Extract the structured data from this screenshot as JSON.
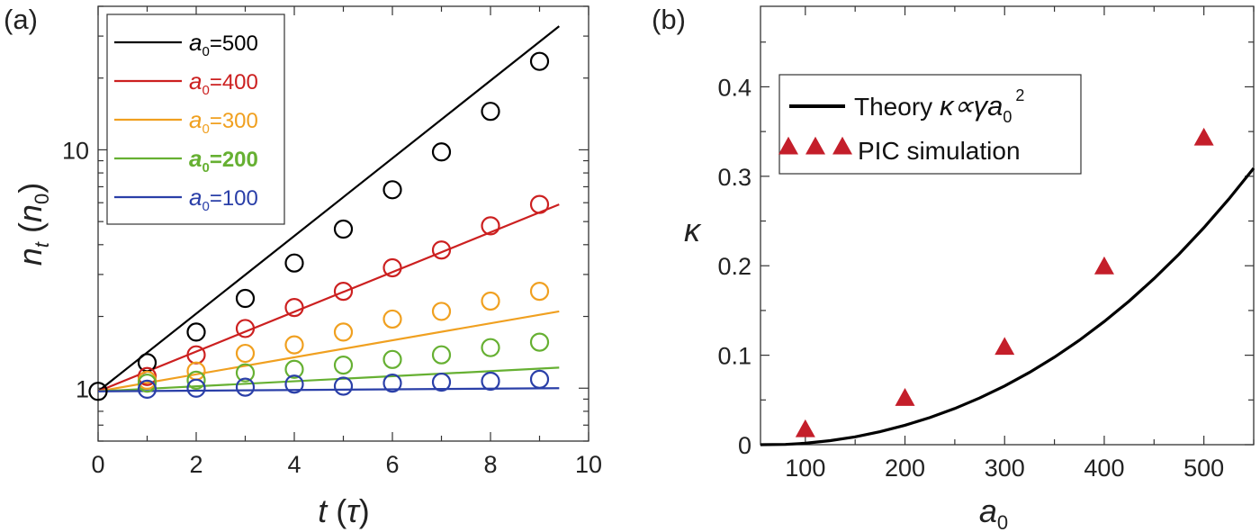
{
  "chart_data": [
    {
      "panel_label": "(a)",
      "type": "line",
      "xlabel": {
        "main": "t",
        "unit": "τ"
      },
      "ylabel": {
        "main": "n",
        "sub": "t",
        "unit": "n",
        "unit_sub": "0"
      },
      "xlim": [
        0,
        10
      ],
      "ylim": [
        0.6,
        40
      ],
      "yscale": "log",
      "xticks": [
        0,
        2,
        4,
        6,
        8,
        10
      ],
      "yticks": [
        1,
        10
      ],
      "legend_position": "top-left",
      "series": [
        {
          "name": "a0=500",
          "name_main": "a",
          "name_sub": "0",
          "name_value": "=500",
          "color": "#000000",
          "bold": false,
          "line": {
            "x": [
              0,
              9.4
            ],
            "y": [
              0.97,
              33
            ]
          },
          "points": {
            "x": [
              0,
              1,
              2,
              3,
              4,
              5,
              6,
              7,
              8,
              9
            ],
            "y": [
              0.97,
              1.28,
              1.72,
              2.38,
              3.35,
              4.65,
              6.8,
              9.8,
              14.5,
              23.5
            ]
          }
        },
        {
          "name": "a0=400",
          "name_main": "a",
          "name_sub": "0",
          "name_value": "=400",
          "color": "#cc2020",
          "bold": false,
          "line": {
            "x": [
              0,
              9.4
            ],
            "y": [
              0.97,
              5.9
            ]
          },
          "points": {
            "x": [
              1,
              2,
              3,
              4,
              5,
              6,
              7,
              8,
              9
            ],
            "y": [
              1.12,
              1.38,
              1.78,
              2.18,
              2.55,
              3.2,
              3.8,
              4.8,
              5.9
            ]
          }
        },
        {
          "name": "a0=300",
          "name_main": "a",
          "name_sub": "0",
          "name_value": "=300",
          "color": "#f0a020",
          "bold": false,
          "line": {
            "x": [
              0,
              9.4
            ],
            "y": [
              0.97,
              2.1
            ]
          },
          "points": {
            "x": [
              1,
              2,
              3,
              4,
              5,
              6,
              7,
              8,
              9
            ],
            "y": [
              1.08,
              1.18,
              1.4,
              1.52,
              1.72,
              1.95,
              2.1,
              2.32,
              2.55
            ]
          }
        },
        {
          "name": "a0=200",
          "name_main": "a",
          "name_sub": "0",
          "name_value": "=200",
          "color": "#66b032",
          "bold": true,
          "line": {
            "x": [
              0,
              9.4
            ],
            "y": [
              0.97,
              1.22
            ]
          },
          "points": {
            "x": [
              1,
              2,
              3,
              4,
              5,
              6,
              7,
              8,
              9
            ],
            "y": [
              1.05,
              1.08,
              1.16,
              1.2,
              1.25,
              1.32,
              1.38,
              1.48,
              1.56
            ]
          }
        },
        {
          "name": "a0=100",
          "name_main": "a",
          "name_sub": "0",
          "name_value": "=100",
          "color": "#2a3fa8",
          "bold": false,
          "line": {
            "x": [
              0,
              9.4
            ],
            "y": [
              0.97,
              1.0
            ]
          },
          "points": {
            "x": [
              1,
              2,
              3,
              4,
              5,
              6,
              7,
              8,
              9
            ],
            "y": [
              0.99,
              1.0,
              1.01,
              1.04,
              1.02,
              1.05,
              1.06,
              1.07,
              1.09
            ]
          }
        }
      ]
    },
    {
      "panel_label": "(b)",
      "type": "line",
      "xlabel": {
        "main": "a",
        "sub": "0"
      },
      "ylabel": {
        "main": "κ"
      },
      "xlim": [
        55,
        550
      ],
      "ylim": [
        0,
        0.49
      ],
      "xticks": [
        100,
        200,
        300,
        400,
        500
      ],
      "yticks": [
        0,
        0.1,
        0.2,
        0.3,
        0.4
      ],
      "ytick_labels": [
        "0",
        "0.1",
        "0.2",
        "0.3",
        "0.4"
      ],
      "legend_position": "top-left",
      "theory": {
        "legend_prefix": "Theory ",
        "legend_formula": "κ∝γa",
        "legend_sub": "0",
        "legend_sup": "2",
        "color": "#000000",
        "x": [
          55,
          80,
          100,
          125,
          150,
          175,
          200,
          225,
          250,
          275,
          300,
          325,
          350,
          375,
          400,
          425,
          450,
          475,
          500,
          525,
          550
        ],
        "y": [
          0,
          0.0003,
          0.0016,
          0.0045,
          0.0088,
          0.0145,
          0.0217,
          0.0303,
          0.0404,
          0.0522,
          0.0656,
          0.0808,
          0.0978,
          0.1167,
          0.1376,
          0.1605,
          0.1856,
          0.2129,
          0.2425,
          0.2745,
          0.309
        ]
      },
      "pic": {
        "legend": "PIC simulation",
        "color": "#c41e2a",
        "x": [
          100,
          200,
          300,
          400,
          500
        ],
        "y": [
          0.016,
          0.051,
          0.108,
          0.198,
          0.342
        ]
      }
    }
  ]
}
